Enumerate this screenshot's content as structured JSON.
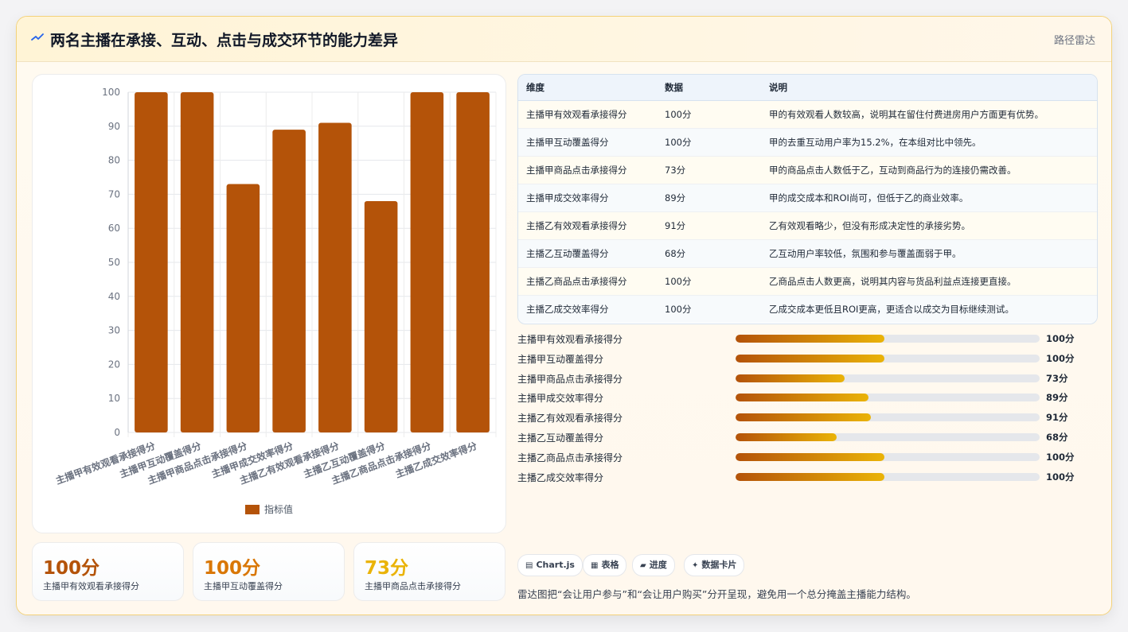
{
  "header": {
    "title": "两名主播在承接、互动、点击与成交环节的能力差异",
    "tag": "路径雷达",
    "icon": "zigzag-icon"
  },
  "chart_data": {
    "type": "bar",
    "categories": [
      "主播甲有效观看承接得分",
      "主播甲互动覆盖得分",
      "主播甲商品点击承接得分",
      "主播甲成交效率得分",
      "主播乙有效观看承接得分",
      "主播乙互动覆盖得分",
      "主播乙商品点击承接得分",
      "主播乙成交效率得分"
    ],
    "series": [
      {
        "name": "指标值",
        "values": [
          100,
          100,
          73,
          89,
          91,
          68,
          100,
          100
        ],
        "color": "#b45309"
      }
    ],
    "ylim": [
      0,
      100
    ],
    "yticks": [
      0,
      10,
      20,
      30,
      40,
      50,
      60,
      70,
      80,
      90,
      100
    ],
    "grid": true,
    "legend_position": "bottom"
  },
  "kpis": [
    {
      "value": "100分",
      "label": "主播甲有效观看承接得分",
      "color": "#b45309"
    },
    {
      "value": "100分",
      "label": "主播甲互动覆盖得分",
      "color": "#d97706"
    },
    {
      "value": "73分",
      "label": "主播甲商品点击承接得分",
      "color": "#eab308"
    }
  ],
  "table": {
    "headers": [
      "维度",
      "数据",
      "说明"
    ],
    "rows": [
      [
        "主播甲有效观看承接得分",
        "100分",
        "甲的有效观看人数较高，说明其在留住付费进房用户方面更有优势。"
      ],
      [
        "主播甲互动覆盖得分",
        "100分",
        "甲的去重互动用户率为15.2%，在本组对比中领先。"
      ],
      [
        "主播甲商品点击承接得分",
        "73分",
        "甲的商品点击人数低于乙，互动到商品行为的连接仍需改善。"
      ],
      [
        "主播甲成交效率得分",
        "89分",
        "甲的成交成本和ROI尚可，但低于乙的商业效率。"
      ],
      [
        "主播乙有效观看承接得分",
        "91分",
        "乙有效观看略少，但没有形成决定性的承接劣势。"
      ],
      [
        "主播乙互动覆盖得分",
        "68分",
        "乙互动用户率较低，氛围和参与覆盖面弱于甲。"
      ],
      [
        "主播乙商品点击承接得分",
        "100分",
        "乙商品点击人数更高，说明其内容与货品利益点连接更直接。"
      ],
      [
        "主播乙成交效率得分",
        "100分",
        "乙成交成本更低且ROI更高，更适合以成交为目标继续测试。"
      ]
    ]
  },
  "progress": [
    {
      "label": "主播甲有效观看承接得分",
      "value": 100,
      "display": "100分"
    },
    {
      "label": "主播甲互动覆盖得分",
      "value": 100,
      "display": "100分"
    },
    {
      "label": "主播甲商品点击承接得分",
      "value": 73,
      "display": "73分"
    },
    {
      "label": "主播甲成交效率得分",
      "value": 89,
      "display": "89分"
    },
    {
      "label": "主播乙有效观看承接得分",
      "value": 91,
      "display": "91分"
    },
    {
      "label": "主播乙互动覆盖得分",
      "value": 68,
      "display": "68分"
    },
    {
      "label": "主播乙商品点击承接得分",
      "value": 100,
      "display": "100分"
    },
    {
      "label": "主播乙成交效率得分",
      "value": 100,
      "display": "100分"
    }
  ],
  "chips": [
    {
      "label": "Chart.js",
      "icon": "chart-icon"
    },
    {
      "label": "表格",
      "icon": "table-icon"
    },
    {
      "label": "进度",
      "icon": "progress-icon"
    },
    {
      "label": "数据卡片",
      "icon": "sparkle-icon"
    }
  ],
  "note": "雷达图把“会让用户参与”和“会让用户购买”分开呈现，避免用一个总分掩盖主播能力结构。"
}
